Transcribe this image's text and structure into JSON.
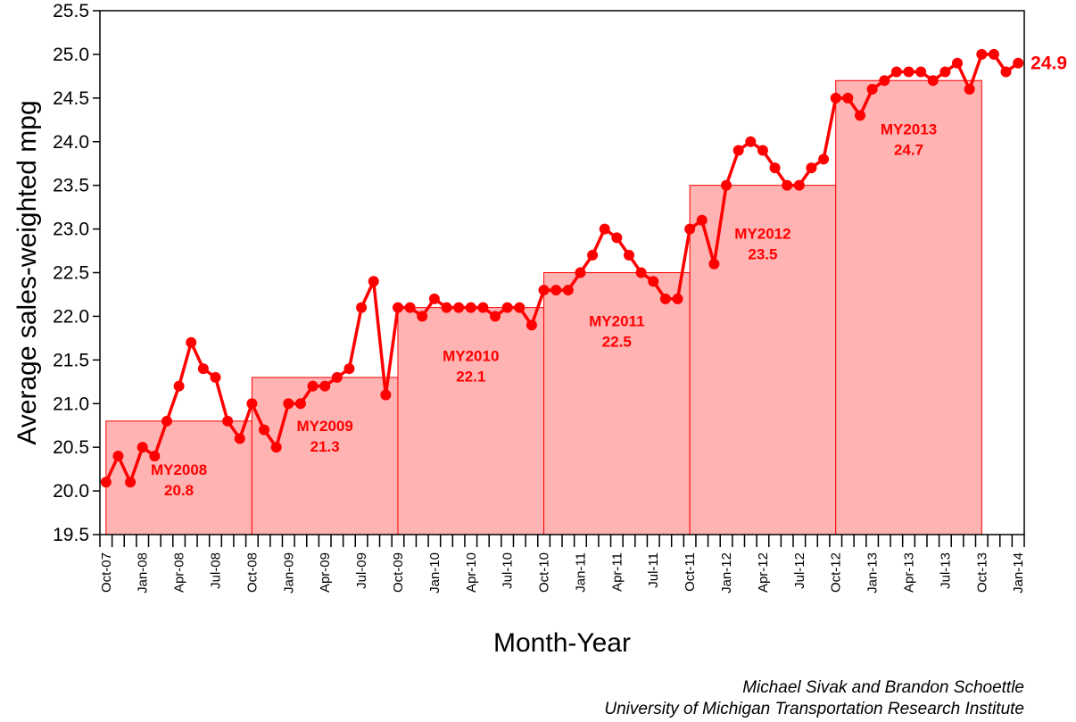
{
  "chart_data": {
    "type": "line",
    "xlabel": "Month-Year",
    "ylabel": "Average sales-weighted mpg",
    "ylim": [
      19.5,
      25.5
    ],
    "yticks": [
      "19.5",
      "20.0",
      "20.5",
      "21.0",
      "21.5",
      "22.0",
      "22.5",
      "23.0",
      "23.5",
      "24.0",
      "24.5",
      "25.0",
      "25.5"
    ],
    "x_tick_labels": [
      "Oct-07",
      "Jan-08",
      "Apr-08",
      "Jul-08",
      "Oct-08",
      "Jan-09",
      "Apr-09",
      "Jul-09",
      "Oct-09",
      "Jan-10",
      "Apr-10",
      "Jul-10",
      "Oct-10",
      "Jan-11",
      "Apr-11",
      "Jul-11",
      "Oct-11",
      "Jan-12",
      "Apr-12",
      "Jul-12",
      "Oct-12",
      "Jan-13",
      "Apr-13",
      "Jul-13",
      "Oct-13",
      "Jan-14"
    ],
    "series": [
      {
        "start_month": "Oct-07",
        "values": [
          20.1,
          20.4,
          20.1,
          20.5,
          20.4,
          20.8,
          21.2,
          21.7,
          21.4,
          21.3,
          20.8,
          20.6,
          21.0,
          20.7,
          20.5,
          21.0,
          21.0,
          21.2,
          21.2,
          21.3,
          21.4,
          22.1,
          22.4,
          21.1,
          22.1,
          22.1,
          22.0,
          22.2,
          22.1,
          22.1,
          22.1,
          22.1,
          22.0,
          22.1,
          22.1,
          21.9,
          22.3,
          22.3,
          22.3,
          22.5,
          22.7,
          23.0,
          22.9,
          22.7,
          22.5,
          22.4,
          22.2,
          22.2,
          23.0,
          23.1,
          22.6,
          23.5,
          23.9,
          24.0,
          23.9,
          23.7,
          23.5,
          23.5,
          23.7,
          23.8,
          24.5,
          24.5,
          24.3,
          24.6,
          24.7,
          24.8,
          24.8,
          24.8,
          24.7,
          24.8,
          24.9,
          24.6,
          25.0,
          25.0,
          24.8,
          24.9
        ]
      }
    ],
    "model_years": [
      {
        "label": "MY2008",
        "value": "20.8",
        "y": 20.8
      },
      {
        "label": "MY2009",
        "value": "21.3",
        "y": 21.3
      },
      {
        "label": "MY2010",
        "value": "22.1",
        "y": 22.1
      },
      {
        "label": "MY2011",
        "value": "22.5",
        "y": 22.5
      },
      {
        "label": "MY2012",
        "value": "23.5",
        "y": 23.5
      },
      {
        "label": "MY2013",
        "value": "24.7",
        "y": 24.7
      }
    ],
    "last_value_label": "24.9",
    "colors": {
      "line": "#ff0000",
      "bar_fill": "#ffb3b3",
      "bar_stroke": "#ff0000",
      "label": "#ff0000"
    }
  },
  "credits": {
    "line1": "Michael Sivak and Brandon Schoettle",
    "line2": "University of Michigan Transportation Research Institute"
  }
}
